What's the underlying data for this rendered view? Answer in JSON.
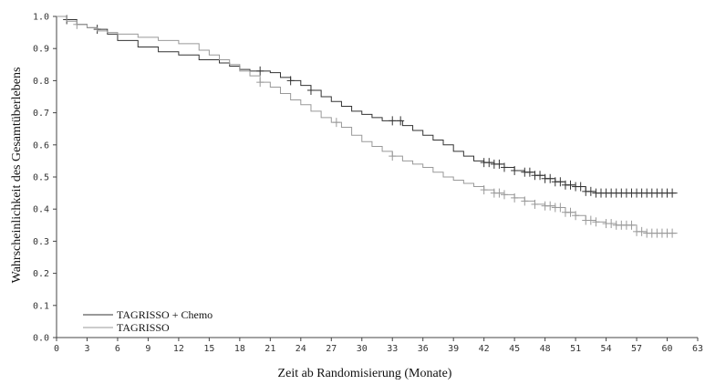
{
  "chart_data": {
    "type": "line",
    "xlabel": "Zeit ab Randomisierung (Monate)",
    "ylabel": "Wahrscheinlichkeit des Gesamtüberlebens",
    "xlim": [
      0,
      63
    ],
    "ylim": [
      0.0,
      1.0
    ],
    "x_ticks": [
      "0",
      "3",
      "6",
      "9",
      "12",
      "15",
      "18",
      "21",
      "24",
      "27",
      "30",
      "33",
      "36",
      "39",
      "42",
      "45",
      "48",
      "51",
      "54",
      "57",
      "60",
      "63"
    ],
    "y_ticks": [
      "0.0",
      "0.1",
      "0.2",
      "0.3",
      "0.4",
      "0.5",
      "0.6",
      "0.7",
      "0.8",
      "0.9",
      "1.0"
    ],
    "grid": false,
    "legend_position": "bottom-left",
    "series": [
      {
        "name": "TAGRISSO + Chemo",
        "color": "#333333",
        "x": [
          0,
          1,
          2,
          3,
          4,
          5,
          6,
          8,
          10,
          12,
          14,
          16,
          17,
          18,
          19,
          20,
          21,
          22,
          23,
          24,
          25,
          26,
          27,
          28,
          29,
          30,
          31,
          32,
          33,
          34,
          35,
          36,
          37,
          38,
          39,
          40,
          41,
          42,
          43,
          44,
          45,
          46,
          47,
          48,
          49,
          50,
          51,
          52,
          53,
          54,
          56,
          58,
          60,
          61
        ],
        "y": [
          1.0,
          0.99,
          0.975,
          0.965,
          0.96,
          0.945,
          0.925,
          0.905,
          0.89,
          0.88,
          0.865,
          0.855,
          0.845,
          0.835,
          0.83,
          0.83,
          0.825,
          0.81,
          0.8,
          0.785,
          0.77,
          0.75,
          0.735,
          0.72,
          0.705,
          0.695,
          0.685,
          0.675,
          0.675,
          0.66,
          0.645,
          0.63,
          0.615,
          0.6,
          0.58,
          0.565,
          0.55,
          0.545,
          0.54,
          0.53,
          0.52,
          0.515,
          0.505,
          0.495,
          0.485,
          0.475,
          0.47,
          0.455,
          0.45,
          0.45,
          0.45,
          0.45,
          0.45,
          0.45
        ],
        "censor_x": [
          1,
          4,
          20,
          23,
          25,
          33,
          33.8,
          42,
          42.5,
          43,
          43.5,
          44,
          45,
          46,
          46.5,
          47,
          47.5,
          48,
          48.5,
          49,
          49.5,
          50,
          50.5,
          51,
          51.5,
          52,
          52.5,
          53,
          53.5,
          54,
          54.5,
          55,
          55.5,
          56,
          56.5,
          57,
          57.5,
          58,
          58.5,
          59,
          59.5,
          60,
          60.5
        ]
      },
      {
        "name": "TAGRISSO",
        "color": "#999999",
        "x": [
          0,
          1,
          2,
          3,
          4,
          5,
          6,
          8,
          10,
          12,
          14,
          15,
          16,
          17,
          18,
          19,
          20,
          21,
          22,
          23,
          24,
          25,
          26,
          27,
          28,
          29,
          30,
          31,
          32,
          33,
          34,
          35,
          36,
          37,
          38,
          39,
          40,
          41,
          42,
          43,
          44,
          45,
          46,
          47,
          48,
          49,
          50,
          51,
          52,
          53,
          54,
          55,
          56,
          57,
          58,
          59,
          60,
          61
        ],
        "y": [
          1.0,
          0.985,
          0.975,
          0.965,
          0.955,
          0.95,
          0.945,
          0.935,
          0.925,
          0.915,
          0.895,
          0.88,
          0.865,
          0.85,
          0.83,
          0.815,
          0.795,
          0.78,
          0.76,
          0.74,
          0.725,
          0.705,
          0.685,
          0.67,
          0.655,
          0.63,
          0.61,
          0.595,
          0.58,
          0.565,
          0.55,
          0.54,
          0.53,
          0.515,
          0.5,
          0.49,
          0.48,
          0.47,
          0.46,
          0.45,
          0.445,
          0.435,
          0.425,
          0.415,
          0.41,
          0.405,
          0.39,
          0.38,
          0.365,
          0.36,
          0.355,
          0.35,
          0.35,
          0.33,
          0.325,
          0.325,
          0.325,
          0.325
        ],
        "censor_x": [
          2,
          20,
          27.5,
          33,
          42,
          43,
          43.5,
          44,
          45,
          46,
          47,
          48,
          48.5,
          49,
          49.5,
          50,
          50.5,
          51,
          52,
          52.5,
          53,
          54,
          54.5,
          55,
          55.5,
          56,
          56.5,
          57,
          57.5,
          58,
          58.5,
          59,
          59.5,
          60,
          60.5
        ]
      }
    ]
  }
}
